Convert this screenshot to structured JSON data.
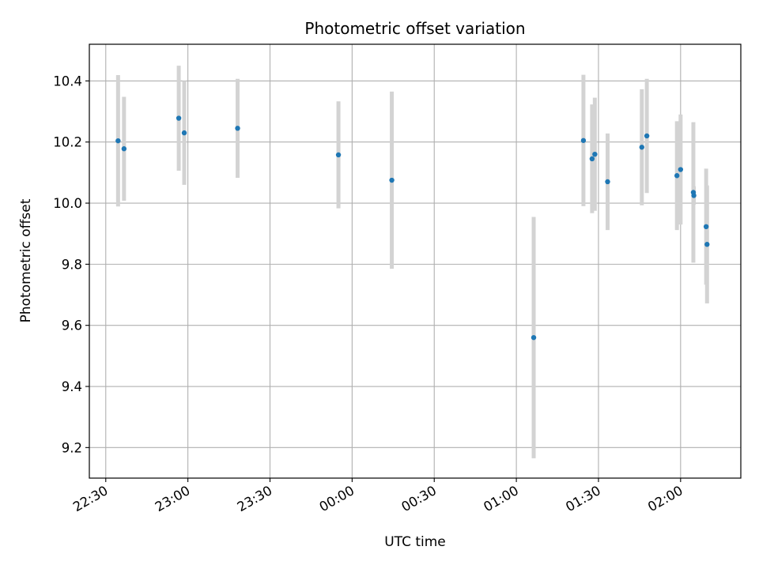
{
  "chart_data": {
    "type": "scatter",
    "title": "Photometric offset variation",
    "xlabel": "UTC time",
    "ylabel": "Photometric offset",
    "x_axis_type": "time",
    "xlim": [
      "22:24",
      "02:22"
    ],
    "ylim": [
      9.1,
      10.52
    ],
    "xticks": [
      {
        "time": "22:30",
        "label": "22:30"
      },
      {
        "time": "23:00",
        "label": "23:00"
      },
      {
        "time": "23:30",
        "label": "23:30"
      },
      {
        "time": "00:00",
        "label": "00:00"
      },
      {
        "time": "00:30",
        "label": "00:30"
      },
      {
        "time": "01:00",
        "label": "01:00"
      },
      {
        "time": "01:30",
        "label": "01:30"
      },
      {
        "time": "02:00",
        "label": "02:00"
      }
    ],
    "yticks": [
      9.2,
      9.4,
      9.6,
      9.8,
      10.0,
      10.2,
      10.4
    ],
    "ytick_labels": [
      "9.2",
      "9.4",
      "9.6",
      "9.8",
      "10.0",
      "10.2",
      "10.4"
    ],
    "grid": true,
    "marker_color": "#1f77b4",
    "errorbar_color": "#d3d3d3",
    "points": [
      {
        "time": "22:34:30",
        "y": 10.204,
        "err": 0.215
      },
      {
        "time": "22:36:40",
        "y": 10.178,
        "err": 0.17
      },
      {
        "time": "22:56:40",
        "y": 10.278,
        "err": 0.172
      },
      {
        "time": "22:58:40",
        "y": 10.23,
        "err": 0.17
      },
      {
        "time": "23:18:10",
        "y": 10.245,
        "err": 0.162
      },
      {
        "time": "23:55:00",
        "y": 10.158,
        "err": 0.175
      },
      {
        "time": "00:14:30",
        "y": 10.075,
        "err": 0.29
      },
      {
        "time": "01:06:20",
        "y": 9.56,
        "err": 0.395
      },
      {
        "time": "01:24:30",
        "y": 10.205,
        "err": 0.215
      },
      {
        "time": "01:27:40",
        "y": 10.145,
        "err": 0.178
      },
      {
        "time": "01:28:40",
        "y": 10.16,
        "err": 0.185
      },
      {
        "time": "01:33:20",
        "y": 10.07,
        "err": 0.158
      },
      {
        "time": "01:45:50",
        "y": 10.183,
        "err": 0.19
      },
      {
        "time": "01:47:40",
        "y": 10.22,
        "err": 0.187
      },
      {
        "time": "01:58:40",
        "y": 10.09,
        "err": 0.178
      },
      {
        "time": "02:00:00",
        "y": 10.11,
        "err": 0.18
      },
      {
        "time": "02:04:40",
        "y": 10.035,
        "err": 0.23
      },
      {
        "time": "02:04:50",
        "y": 10.025,
        "err": 0.03
      },
      {
        "time": "02:09:20",
        "y": 9.923,
        "err": 0.19
      },
      {
        "time": "02:09:40",
        "y": 9.865,
        "err": 0.193
      }
    ]
  }
}
